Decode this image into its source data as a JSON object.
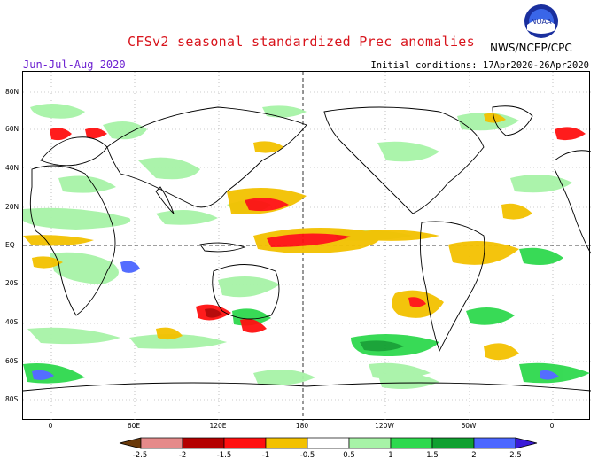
{
  "header": {
    "title": "CFSv2 seasonal standardized Prec anomalies",
    "season": "Jun-Jul-Aug 2020",
    "initial_conditions": "Initial conditions: 17Apr2020-26Apr2020",
    "agency": "NWS/NCEP/CPC",
    "logo_text": "NOAA"
  },
  "map": {
    "lat_labels": [
      "80N",
      "60N",
      "40N",
      "20N",
      "EQ",
      "20S",
      "40S",
      "60S",
      "80S"
    ],
    "lon_labels": [
      "0",
      "60E",
      "120E",
      "180",
      "120W",
      "60W",
      "0"
    ],
    "projection": "equirectangular, centered on 180"
  },
  "colorbar": {
    "labels": [
      "-2.5",
      "-2",
      "-1.5",
      "-1",
      "-0.5",
      "0.5",
      "1",
      "1.5",
      "2",
      "2.5"
    ],
    "colors": [
      "#6b3a0a",
      "#e58a8a",
      "#b40000",
      "#ff1010",
      "#f3c100",
      "#ffffff",
      "#a7f3a7",
      "#2ed94e",
      "#10a030",
      "#4b66ff",
      "#3a1ad8"
    ]
  },
  "anomaly_colors": {
    "dry_weak": "#f3c100",
    "dry_mod": "#ff1010",
    "dry_strong": "#b40000",
    "wet_weak": "#a7f3a7",
    "wet_mod": "#2ed94e",
    "wet_strong": "#10a030",
    "wet_extreme": "#4b66ff"
  }
}
